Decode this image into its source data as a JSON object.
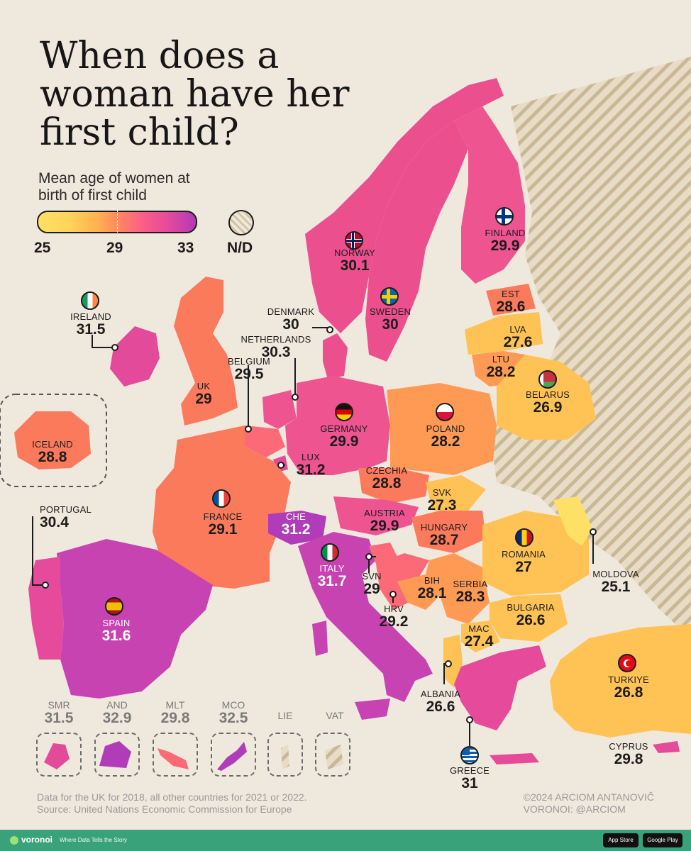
{
  "title": "When does a woman have her first child?",
  "legend": {
    "title": "Mean age of women at birth of first child",
    "min": "25",
    "mid": "29",
    "max": "33",
    "nd_label": "N/D",
    "colors": [
      "#ffe066",
      "#ffb050",
      "#ff8a5e",
      "#fb5e86",
      "#e54b9a",
      "#b339b6"
    ]
  },
  "countries": {
    "norway": {
      "name": "NORWAY",
      "value": "30.1"
    },
    "finland": {
      "name": "FINLAND",
      "value": "29.9"
    },
    "sweden": {
      "name": "SWEDEN",
      "value": "30"
    },
    "ireland": {
      "name": "IRELAND",
      "value": "31.5"
    },
    "denmark": {
      "name": "DENMARK",
      "value": "30"
    },
    "estonia": {
      "name": "EST",
      "value": "28.6"
    },
    "latvia": {
      "name": "LVA",
      "value": "27.6"
    },
    "lithuania": {
      "name": "LTU",
      "value": "28.2"
    },
    "netherlands": {
      "name": "NETHERLANDS",
      "value": "30.3"
    },
    "belgium": {
      "name": "BELGIUM",
      "value": "29.5"
    },
    "uk": {
      "name": "UK",
      "value": "29"
    },
    "belarus": {
      "name": "BELARUS",
      "value": "26.9"
    },
    "iceland": {
      "name": "ICELAND",
      "value": "28.8"
    },
    "germany": {
      "name": "GERMANY",
      "value": "29.9"
    },
    "poland": {
      "name": "POLAND",
      "value": "28.2"
    },
    "luxembourg": {
      "name": "LUX",
      "value": "31.2"
    },
    "czechia": {
      "name": "CZECHIA",
      "value": "28.8"
    },
    "slovakia": {
      "name": "SVK",
      "value": "27.3"
    },
    "portugal": {
      "name": "PORTUGAL",
      "value": "30.4"
    },
    "france": {
      "name": "FRANCE",
      "value": "29.1"
    },
    "switzerland": {
      "name": "CHE",
      "value": "31.2"
    },
    "austria": {
      "name": "AUSTRIA",
      "value": "29.9"
    },
    "hungary": {
      "name": "HUNGARY",
      "value": "28.7"
    },
    "romania": {
      "name": "ROMANIA",
      "value": "27"
    },
    "moldova": {
      "name": "MOLDOVA",
      "value": "25.1"
    },
    "italy": {
      "name": "ITALY",
      "value": "31.7"
    },
    "slovenia": {
      "name": "SVN",
      "value": "29"
    },
    "bosnia": {
      "name": "BIH",
      "value": "28.1"
    },
    "serbia": {
      "name": "SERBIA",
      "value": "28.3"
    },
    "croatia": {
      "name": "HRV",
      "value": "29.2"
    },
    "spain": {
      "name": "SPAIN",
      "value": "31.6"
    },
    "bulgaria": {
      "name": "BULGARIA",
      "value": "26.6"
    },
    "north_macedonia": {
      "name": "MAC",
      "value": "27.4"
    },
    "turkiye": {
      "name": "TURKIYE",
      "value": "26.8"
    },
    "albania": {
      "name": "ALBANIA",
      "value": "26.6"
    },
    "cyprus": {
      "name": "CYPRUS",
      "value": "29.8"
    },
    "greece": {
      "name": "GREECE",
      "value": "31"
    }
  },
  "microstates": [
    {
      "name": "SMR",
      "value": "31.5"
    },
    {
      "name": "AND",
      "value": "32.9"
    },
    {
      "name": "MLT",
      "value": "29.8"
    },
    {
      "name": "MCO",
      "value": "32.5"
    },
    {
      "name": "LIE",
      "value": ""
    },
    {
      "name": "VAT",
      "value": ""
    }
  ],
  "footnote": {
    "line1": "Data for the UK for 2018, all other countries for 2021 or 2022.",
    "line2": "Source: United Nations Economic Commission for Europe"
  },
  "credit": {
    "line1": "©2024 ARCIOM ANTANOVIČ",
    "line2": "VORONOI: @ARCIOM"
  },
  "footer": {
    "brand": "voronoi",
    "tagline": "Where Data Tells the Story",
    "app_store": "App Store",
    "google_play": "Google Play"
  }
}
